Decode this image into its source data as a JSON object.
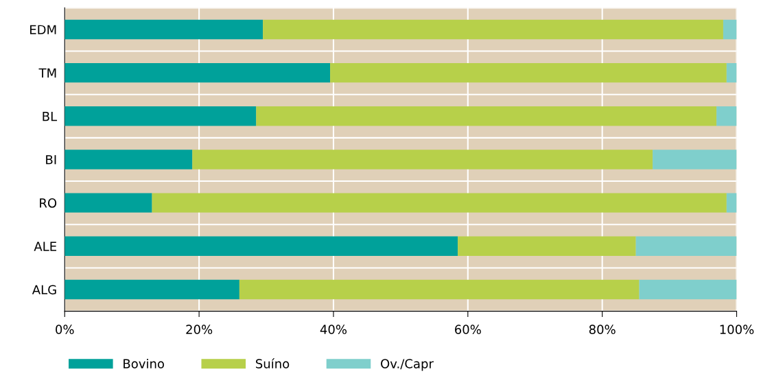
{
  "chart_data": {
    "type": "bar",
    "orientation": "horizontal",
    "stacked": true,
    "categories": [
      "EDM",
      "TM",
      "BL",
      "BI",
      "RO",
      "ALE",
      "ALG"
    ],
    "series": [
      {
        "name": "Bovino",
        "color": "#00a19a",
        "values": [
          29.5,
          39.5,
          28.5,
          19,
          13,
          58.5,
          26
        ]
      },
      {
        "name": "Suíno",
        "color": "#b7d04a",
        "values": [
          68.5,
          59,
          68.5,
          68.5,
          85.5,
          26.5,
          59.5
        ]
      },
      {
        "name": "Ov./Capr",
        "color": "#7fcfcc",
        "values": [
          2,
          1.5,
          3,
          12.5,
          1.5,
          15,
          14.5
        ]
      }
    ],
    "xlim": [
      0,
      100
    ],
    "xticks": [
      {
        "value": 0,
        "label": "0%"
      },
      {
        "value": 20,
        "label": "20%"
      },
      {
        "value": 40,
        "label": "40%"
      },
      {
        "value": 60,
        "label": "60%"
      },
      {
        "value": 80,
        "label": "80%"
      },
      {
        "value": 100,
        "label": "100%"
      }
    ],
    "grid": true,
    "legend": "bottom left"
  }
}
